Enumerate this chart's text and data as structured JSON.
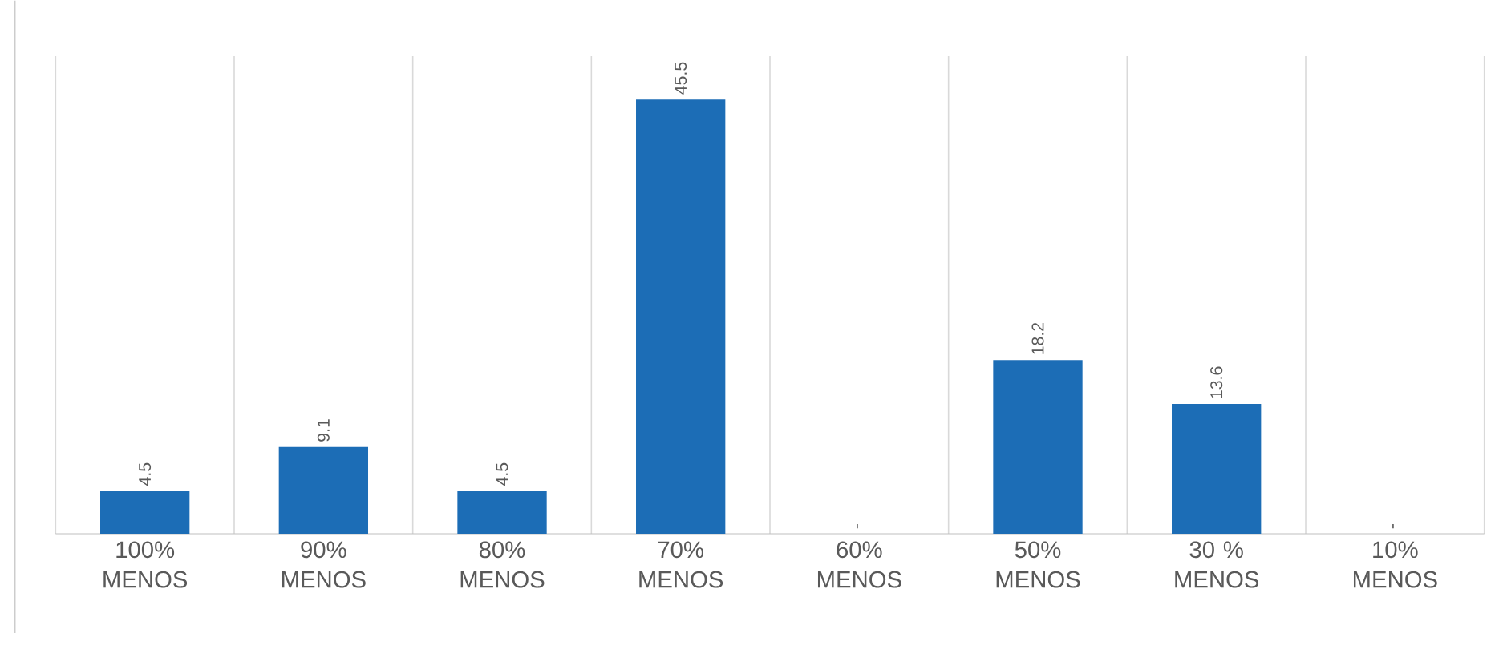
{
  "chart_data": {
    "type": "bar",
    "categories": [
      "100% MENOS",
      "90% MENOS",
      "80% MENOS",
      "70% MENOS",
      "60% MENOS",
      "50% MENOS",
      "30 % MENOS",
      "10% MENOS"
    ],
    "values": [
      4.5,
      9.1,
      4.5,
      45.5,
      0,
      18.2,
      13.6,
      0
    ],
    "value_labels": [
      "4.5",
      "9.1",
      "4.5",
      "45.5",
      "-",
      "18.2",
      "13.6",
      "-"
    ],
    "color": "#1c6db6",
    "grid": "x"
  }
}
